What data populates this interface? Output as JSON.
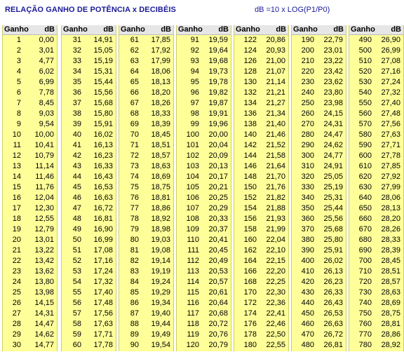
{
  "header": {
    "title": "RELAÇÃO GANHO DE POTÊNCIA x DECIBÉIS",
    "formula": "dB =10 x LOG(P1/P0)"
  },
  "col_headers": {
    "gain": "Ganho",
    "db": "dB"
  },
  "blocks": [
    {
      "rows": [
        [
          "1",
          "0,00"
        ],
        [
          "2",
          "3,01"
        ],
        [
          "3",
          "4,77"
        ],
        [
          "4",
          "6,02"
        ],
        [
          "5",
          "6,99"
        ],
        [
          "6",
          "7,78"
        ],
        [
          "7",
          "8,45"
        ],
        [
          "8",
          "9,03"
        ],
        [
          "9",
          "9,54"
        ],
        [
          "10",
          "10,00"
        ],
        [
          "11",
          "10,41"
        ],
        [
          "12",
          "10,79"
        ],
        [
          "13",
          "11,14"
        ],
        [
          "14",
          "11,46"
        ],
        [
          "15",
          "11,76"
        ],
        [
          "16",
          "12,04"
        ],
        [
          "17",
          "12,30"
        ],
        [
          "18",
          "12,55"
        ],
        [
          "19",
          "12,79"
        ],
        [
          "20",
          "13,01"
        ],
        [
          "21",
          "13,22"
        ],
        [
          "22",
          "13,42"
        ],
        [
          "23",
          "13,62"
        ],
        [
          "24",
          "13,80"
        ],
        [
          "25",
          "13,98"
        ],
        [
          "26",
          "14,15"
        ],
        [
          "27",
          "14,31"
        ],
        [
          "28",
          "14,47"
        ],
        [
          "29",
          "14,62"
        ],
        [
          "30",
          "14,77"
        ]
      ]
    },
    {
      "rows": [
        [
          "31",
          "14,91"
        ],
        [
          "32",
          "15,05"
        ],
        [
          "33",
          "15,19"
        ],
        [
          "34",
          "15,31"
        ],
        [
          "35",
          "15,44"
        ],
        [
          "36",
          "15,56"
        ],
        [
          "37",
          "15,68"
        ],
        [
          "38",
          "15,80"
        ],
        [
          "39",
          "15,91"
        ],
        [
          "40",
          "16,02"
        ],
        [
          "41",
          "16,13"
        ],
        [
          "42",
          "16,23"
        ],
        [
          "43",
          "16,33"
        ],
        [
          "44",
          "16,43"
        ],
        [
          "45",
          "16,53"
        ],
        [
          "46",
          "16,63"
        ],
        [
          "47",
          "16,72"
        ],
        [
          "48",
          "16,81"
        ],
        [
          "49",
          "16,90"
        ],
        [
          "50",
          "16,99"
        ],
        [
          "51",
          "17,08"
        ],
        [
          "52",
          "17,16"
        ],
        [
          "53",
          "17,24"
        ],
        [
          "54",
          "17,32"
        ],
        [
          "55",
          "17,40"
        ],
        [
          "56",
          "17,48"
        ],
        [
          "57",
          "17,56"
        ],
        [
          "58",
          "17,63"
        ],
        [
          "59",
          "17,71"
        ],
        [
          "60",
          "17,78"
        ]
      ]
    },
    {
      "rows": [
        [
          "61",
          "17,85"
        ],
        [
          "62",
          "17,92"
        ],
        [
          "63",
          "17,99"
        ],
        [
          "64",
          "18,06"
        ],
        [
          "65",
          "18,13"
        ],
        [
          "66",
          "18,20"
        ],
        [
          "67",
          "18,26"
        ],
        [
          "68",
          "18,33"
        ],
        [
          "69",
          "18,39"
        ],
        [
          "70",
          "18,45"
        ],
        [
          "71",
          "18,51"
        ],
        [
          "72",
          "18,57"
        ],
        [
          "73",
          "18,63"
        ],
        [
          "74",
          "18,69"
        ],
        [
          "75",
          "18,75"
        ],
        [
          "76",
          "18,81"
        ],
        [
          "77",
          "18,86"
        ],
        [
          "78",
          "18,92"
        ],
        [
          "79",
          "18,98"
        ],
        [
          "80",
          "19,03"
        ],
        [
          "81",
          "19,08"
        ],
        [
          "82",
          "19,14"
        ],
        [
          "83",
          "19,19"
        ],
        [
          "84",
          "19,24"
        ],
        [
          "85",
          "19,29"
        ],
        [
          "86",
          "19,34"
        ],
        [
          "87",
          "19,40"
        ],
        [
          "88",
          "19,44"
        ],
        [
          "89",
          "19,49"
        ],
        [
          "90",
          "19,54"
        ]
      ]
    },
    {
      "rows": [
        [
          "91",
          "19,59"
        ],
        [
          "92",
          "19,64"
        ],
        [
          "93",
          "19,68"
        ],
        [
          "94",
          "19,73"
        ],
        [
          "95",
          "19,78"
        ],
        [
          "96",
          "19,82"
        ],
        [
          "97",
          "19,87"
        ],
        [
          "98",
          "19,91"
        ],
        [
          "99",
          "19,96"
        ],
        [
          "100",
          "20,00"
        ],
        [
          "101",
          "20,04"
        ],
        [
          "102",
          "20,09"
        ],
        [
          "103",
          "20,13"
        ],
        [
          "104",
          "20,17"
        ],
        [
          "105",
          "20,21"
        ],
        [
          "106",
          "20,25"
        ],
        [
          "107",
          "20,29"
        ],
        [
          "108",
          "20,33"
        ],
        [
          "109",
          "20,37"
        ],
        [
          "110",
          "20,41"
        ],
        [
          "111",
          "20,45"
        ],
        [
          "112",
          "20,49"
        ],
        [
          "113",
          "20,53"
        ],
        [
          "114",
          "20,57"
        ],
        [
          "115",
          "20,61"
        ],
        [
          "116",
          "20,64"
        ],
        [
          "117",
          "20,68"
        ],
        [
          "118",
          "20,72"
        ],
        [
          "119",
          "20,76"
        ],
        [
          "120",
          "20,79"
        ]
      ]
    },
    {
      "rows": [
        [
          "122",
          "20,86"
        ],
        [
          "124",
          "20,93"
        ],
        [
          "126",
          "21,00"
        ],
        [
          "128",
          "21,07"
        ],
        [
          "130",
          "21,14"
        ],
        [
          "132",
          "21,21"
        ],
        [
          "134",
          "21,27"
        ],
        [
          "136",
          "21,34"
        ],
        [
          "138",
          "21,40"
        ],
        [
          "140",
          "21,46"
        ],
        [
          "142",
          "21,52"
        ],
        [
          "144",
          "21,58"
        ],
        [
          "146",
          "21,64"
        ],
        [
          "148",
          "21,70"
        ],
        [
          "150",
          "21,76"
        ],
        [
          "152",
          "21,82"
        ],
        [
          "154",
          "21,88"
        ],
        [
          "156",
          "21,93"
        ],
        [
          "158",
          "21,99"
        ],
        [
          "160",
          "22,04"
        ],
        [
          "162",
          "22,10"
        ],
        [
          "164",
          "22,15"
        ],
        [
          "166",
          "22,20"
        ],
        [
          "168",
          "22,25"
        ],
        [
          "170",
          "22,30"
        ],
        [
          "172",
          "22,36"
        ],
        [
          "174",
          "22,41"
        ],
        [
          "176",
          "22,46"
        ],
        [
          "178",
          "22,50"
        ],
        [
          "180",
          "22,55"
        ]
      ]
    },
    {
      "rows": [
        [
          "190",
          "22,79"
        ],
        [
          "200",
          "23,01"
        ],
        [
          "210",
          "23,22"
        ],
        [
          "220",
          "23,42"
        ],
        [
          "230",
          "23,62"
        ],
        [
          "240",
          "23,80"
        ],
        [
          "250",
          "23,98"
        ],
        [
          "260",
          "24,15"
        ],
        [
          "270",
          "24,31"
        ],
        [
          "280",
          "24,47"
        ],
        [
          "290",
          "24,62"
        ],
        [
          "300",
          "24,77"
        ],
        [
          "310",
          "24,91"
        ],
        [
          "320",
          "25,05"
        ],
        [
          "330",
          "25,19"
        ],
        [
          "340",
          "25,31"
        ],
        [
          "350",
          "25,44"
        ],
        [
          "360",
          "25,56"
        ],
        [
          "370",
          "25,68"
        ],
        [
          "380",
          "25,80"
        ],
        [
          "390",
          "25,91"
        ],
        [
          "400",
          "26,02"
        ],
        [
          "410",
          "26,13"
        ],
        [
          "420",
          "26,23"
        ],
        [
          "430",
          "26,33"
        ],
        [
          "440",
          "26,43"
        ],
        [
          "450",
          "26,53"
        ],
        [
          "460",
          "26,63"
        ],
        [
          "470",
          "26,72"
        ],
        [
          "480",
          "26,81"
        ]
      ]
    },
    {
      "rows": [
        [
          "490",
          "26,90"
        ],
        [
          "500",
          "26,99"
        ],
        [
          "510",
          "27,08"
        ],
        [
          "520",
          "27,16"
        ],
        [
          "530",
          "27,24"
        ],
        [
          "540",
          "27,32"
        ],
        [
          "550",
          "27,40"
        ],
        [
          "560",
          "27,48"
        ],
        [
          "570",
          "27,56"
        ],
        [
          "580",
          "27,63"
        ],
        [
          "590",
          "27,71"
        ],
        [
          "600",
          "27,78"
        ],
        [
          "610",
          "27,85"
        ],
        [
          "620",
          "27,92"
        ],
        [
          "630",
          "27,99"
        ],
        [
          "640",
          "28,06"
        ],
        [
          "650",
          "28,13"
        ],
        [
          "660",
          "28,20"
        ],
        [
          "670",
          "28,26"
        ],
        [
          "680",
          "28,33"
        ],
        [
          "690",
          "28,39"
        ],
        [
          "700",
          "28,45"
        ],
        [
          "710",
          "28,51"
        ],
        [
          "720",
          "28,57"
        ],
        [
          "730",
          "28,63"
        ],
        [
          "740",
          "28,69"
        ],
        [
          "750",
          "28,75"
        ],
        [
          "760",
          "28,81"
        ],
        [
          "770",
          "28,86"
        ],
        [
          "780",
          "28,92"
        ]
      ]
    }
  ]
}
